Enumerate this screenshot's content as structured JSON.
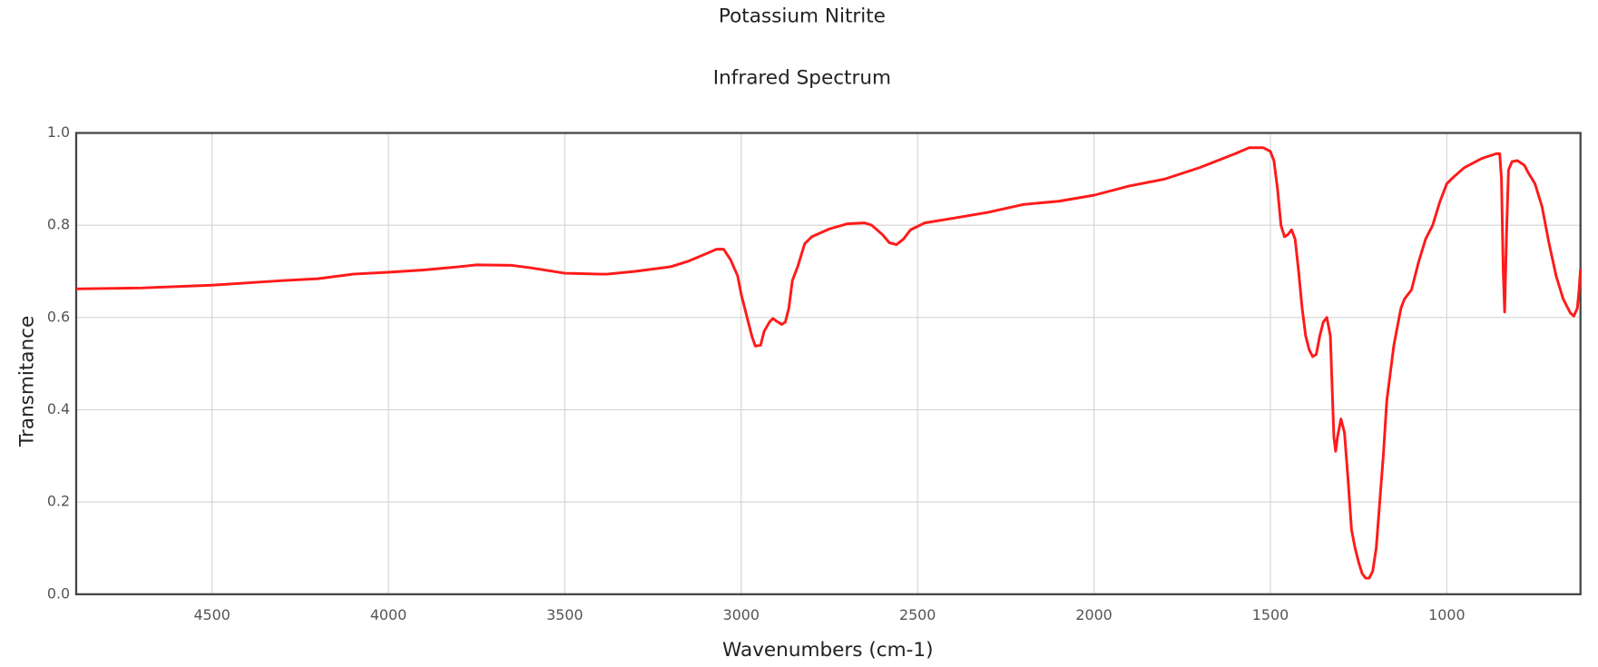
{
  "chart_data": {
    "type": "line",
    "title": "Potassium Nitrite",
    "subtitle": "Infrared Spectrum",
    "x_label": "Wavenumbers (cm-1)",
    "y_label": "Transmitance",
    "color": "#ff1a1a",
    "grid": true,
    "xlim": [
      4885,
      621
    ],
    "ylim": [
      0,
      1
    ],
    "xticks": [
      4500,
      4000,
      3500,
      3000,
      2500,
      2000,
      1500,
      1000
    ],
    "yticks": [
      {
        "value": 0,
        "label": "0.0"
      },
      0.2,
      0.4,
      0.6,
      0.8,
      {
        "value": 1,
        "label": "1.0"
      }
    ],
    "x": [
      4885,
      4700,
      4500,
      4300,
      4200,
      4100,
      4000,
      3900,
      3800,
      3750,
      3650,
      3600,
      3500,
      3400,
      3380,
      3300,
      3200,
      3150,
      3100,
      3070,
      3050,
      3030,
      3010,
      3000,
      2990,
      2980,
      2970,
      2960,
      2945,
      2935,
      2920,
      2910,
      2900,
      2885,
      2875,
      2865,
      2855,
      2840,
      2820,
      2800,
      2750,
      2700,
      2650,
      2630,
      2600,
      2580,
      2560,
      2540,
      2520,
      2480,
      2400,
      2300,
      2200,
      2100,
      2000,
      1900,
      1800,
      1700,
      1600,
      1560,
      1520,
      1500,
      1490,
      1480,
      1470,
      1460,
      1450,
      1440,
      1430,
      1420,
      1410,
      1400,
      1390,
      1380,
      1370,
      1360,
      1350,
      1340,
      1330,
      1325,
      1320,
      1315,
      1310,
      1300,
      1290,
      1280,
      1270,
      1260,
      1250,
      1240,
      1230,
      1220,
      1210,
      1200,
      1190,
      1180,
      1170,
      1160,
      1150,
      1140,
      1130,
      1120,
      1100,
      1080,
      1060,
      1040,
      1020,
      1000,
      980,
      950,
      900,
      860,
      850,
      845,
      840,
      836,
      830,
      825,
      815,
      800,
      780,
      770,
      750,
      730,
      710,
      690,
      670,
      650,
      640,
      630,
      625,
      621
    ],
    "values": [
      0.662,
      0.664,
      0.67,
      0.68,
      0.684,
      0.694,
      0.698,
      0.703,
      0.71,
      0.714,
      0.713,
      0.708,
      0.696,
      0.694,
      0.694,
      0.7,
      0.71,
      0.722,
      0.738,
      0.748,
      0.748,
      0.725,
      0.69,
      0.65,
      0.62,
      0.59,
      0.56,
      0.538,
      0.54,
      0.57,
      0.59,
      0.598,
      0.592,
      0.585,
      0.59,
      0.62,
      0.68,
      0.71,
      0.76,
      0.775,
      0.792,
      0.803,
      0.805,
      0.8,
      0.78,
      0.762,
      0.758,
      0.77,
      0.79,
      0.805,
      0.815,
      0.828,
      0.845,
      0.852,
      0.865,
      0.885,
      0.9,
      0.925,
      0.955,
      0.968,
      0.968,
      0.96,
      0.94,
      0.88,
      0.8,
      0.775,
      0.78,
      0.79,
      0.77,
      0.7,
      0.62,
      0.56,
      0.53,
      0.515,
      0.52,
      0.56,
      0.59,
      0.6,
      0.56,
      0.45,
      0.34,
      0.31,
      0.34,
      0.38,
      0.35,
      0.25,
      0.14,
      0.1,
      0.07,
      0.045,
      0.035,
      0.035,
      0.05,
      0.1,
      0.2,
      0.3,
      0.42,
      0.48,
      0.54,
      0.58,
      0.62,
      0.64,
      0.66,
      0.72,
      0.77,
      0.8,
      0.85,
      0.89,
      0.905,
      0.925,
      0.945,
      0.955,
      0.955,
      0.9,
      0.7,
      0.612,
      0.8,
      0.92,
      0.938,
      0.94,
      0.93,
      0.915,
      0.89,
      0.84,
      0.76,
      0.69,
      0.64,
      0.61,
      0.603,
      0.62,
      0.66,
      0.705
    ]
  }
}
